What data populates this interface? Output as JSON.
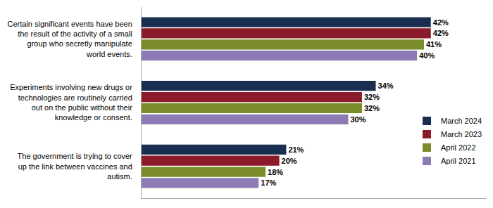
{
  "chart_data": {
    "type": "bar",
    "orientation": "horizontal",
    "categories": [
      "Certain significant events have been\nthe result of the activity of a small\ngroup who secretly manipulate\nworld events.",
      "Experiments involving new drugs or\ntechnologies are routinely carried\nout on the public without their\nknowledge or consent.",
      "The government is trying to cover\nup the link between vaccines and\nautism."
    ],
    "series": [
      {
        "name": "March 2024",
        "color": "#1a2e52",
        "values": [
          42,
          34,
          21
        ],
        "value_labels": [
          "42%",
          "34%",
          "21%"
        ]
      },
      {
        "name": "March 2023",
        "color": "#8b1a2a",
        "values": [
          42,
          32,
          20
        ],
        "value_labels": [
          "42%",
          "32%",
          "20%"
        ]
      },
      {
        "name": "April 2022",
        "color": "#7a8c2a",
        "values": [
          41,
          32,
          18
        ],
        "value_labels": [
          "41%",
          "32%",
          "18%"
        ]
      },
      {
        "name": "April 2021",
        "color": "#8c7bb5",
        "values": [
          40,
          30,
          17
        ],
        "value_labels": [
          "40%",
          "30%",
          "17%"
        ]
      }
    ],
    "xlim": [
      0,
      50
    ],
    "xticks": [],
    "data_labels": true,
    "tick_labels": "y",
    "grid": false,
    "legend": "right"
  }
}
